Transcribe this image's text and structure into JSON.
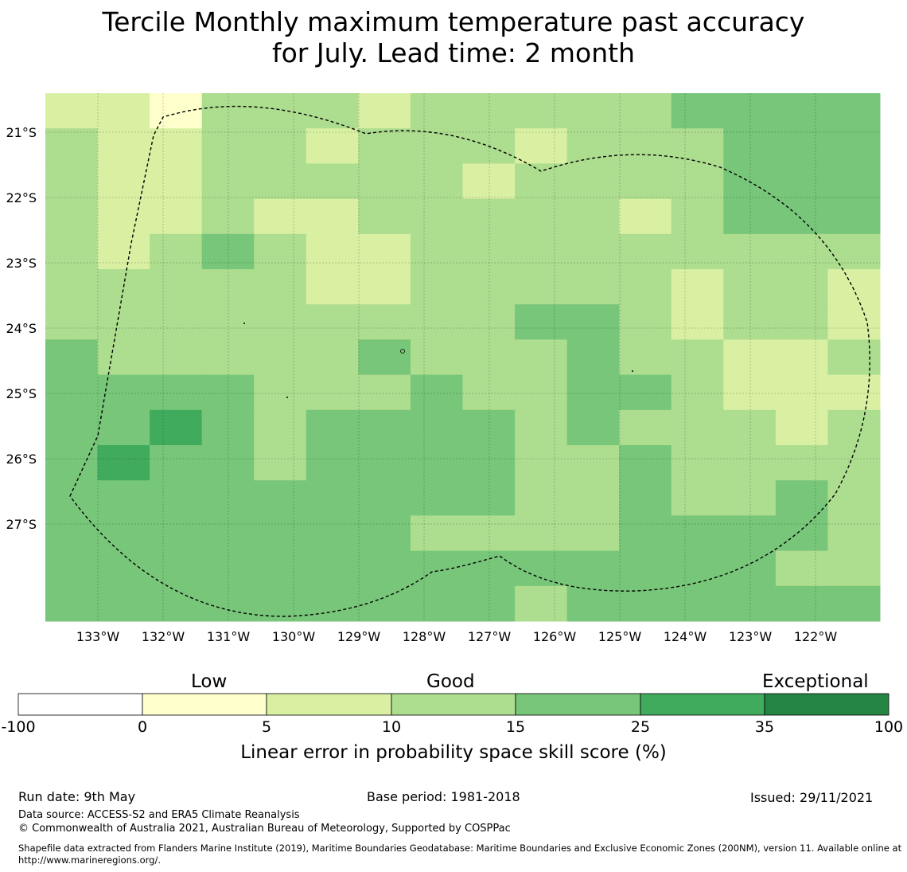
{
  "title": {
    "line1": "Tercile Monthly maximum temperature past accuracy",
    "line2": "for July. Lead time: 2 month"
  },
  "map": {
    "lat_labels": [
      "21°S",
      "22°S",
      "23°S",
      "24°S",
      "25°S",
      "26°S",
      "27°S"
    ],
    "lon_labels": [
      "133°W",
      "132°W",
      "131°W",
      "130°W",
      "129°W",
      "128°W",
      "127°W",
      "126°W",
      "125°W",
      "124°W",
      "123°W",
      "122°W"
    ],
    "grid": [
      [
        2,
        2,
        1,
        3,
        3,
        3,
        2,
        3,
        3,
        3,
        3,
        3,
        4,
        4,
        4,
        4
      ],
      [
        3,
        2,
        2,
        3,
        3,
        2,
        3,
        3,
        3,
        2,
        3,
        3,
        3,
        4,
        4,
        4
      ],
      [
        3,
        2,
        2,
        3,
        3,
        3,
        3,
        3,
        2,
        3,
        3,
        3,
        3,
        4,
        4,
        4
      ],
      [
        3,
        2,
        2,
        3,
        2,
        2,
        3,
        3,
        3,
        3,
        3,
        2,
        3,
        4,
        4,
        4
      ],
      [
        3,
        2,
        3,
        4,
        3,
        2,
        2,
        3,
        3,
        3,
        3,
        3,
        3,
        3,
        3,
        3
      ],
      [
        3,
        3,
        3,
        3,
        3,
        2,
        2,
        3,
        3,
        3,
        3,
        3,
        2,
        3,
        3,
        2
      ],
      [
        3,
        3,
        3,
        3,
        3,
        3,
        3,
        3,
        3,
        4,
        4,
        3,
        2,
        3,
        3,
        2
      ],
      [
        4,
        3,
        3,
        3,
        3,
        3,
        4,
        3,
        3,
        3,
        4,
        3,
        3,
        2,
        2,
        3
      ],
      [
        4,
        4,
        4,
        4,
        3,
        3,
        3,
        4,
        3,
        3,
        4,
        4,
        3,
        2,
        2,
        2
      ],
      [
        4,
        4,
        5,
        4,
        3,
        4,
        4,
        4,
        4,
        3,
        4,
        3,
        3,
        3,
        2,
        3
      ],
      [
        4,
        5,
        4,
        4,
        3,
        4,
        4,
        4,
        4,
        3,
        3,
        4,
        3,
        3,
        3,
        3
      ],
      [
        4,
        4,
        4,
        4,
        4,
        4,
        4,
        4,
        4,
        3,
        3,
        4,
        3,
        3,
        4,
        3
      ],
      [
        4,
        4,
        4,
        4,
        4,
        4,
        4,
        3,
        3,
        3,
        3,
        4,
        4,
        4,
        4,
        3
      ],
      [
        4,
        4,
        4,
        4,
        4,
        4,
        4,
        4,
        4,
        4,
        4,
        4,
        4,
        4,
        3,
        3
      ],
      [
        4,
        4,
        4,
        4,
        4,
        4,
        4,
        4,
        4,
        3,
        4,
        4,
        4,
        4,
        4,
        4
      ]
    ]
  },
  "colorbar": {
    "categories": [
      "Low",
      "Good",
      "Exceptional"
    ],
    "ticks": [
      "-100",
      "0",
      "5",
      "10",
      "15",
      "25",
      "35",
      "100"
    ],
    "colors": [
      "#ffffff",
      "#ffffcc",
      "#d9f0a3",
      "#addd8e",
      "#78c679",
      "#41ab5d",
      "#238443"
    ],
    "label": "Linear error in probability space skill score (%)"
  },
  "footer": {
    "run_date": "Run date: 9th May",
    "base_period": "Base period: 1981-2018",
    "issued": "Issued: 29/11/2021",
    "data_source": "Data source: ACCESS-S2 and ERA5 Climate Reanalysis",
    "copyright": "© Commonwealth of Australia 2021, Australian Bureau of Meteorology, Supported by COSPPac",
    "shapefile": "Shapefile data extracted from Flanders Marine Institute (2019), Maritime Boundaries Geodatabase: Maritime Boundaries and Exclusive Economic Zones (200NM), version 11. Available online at http://www.marineregions.org/."
  }
}
